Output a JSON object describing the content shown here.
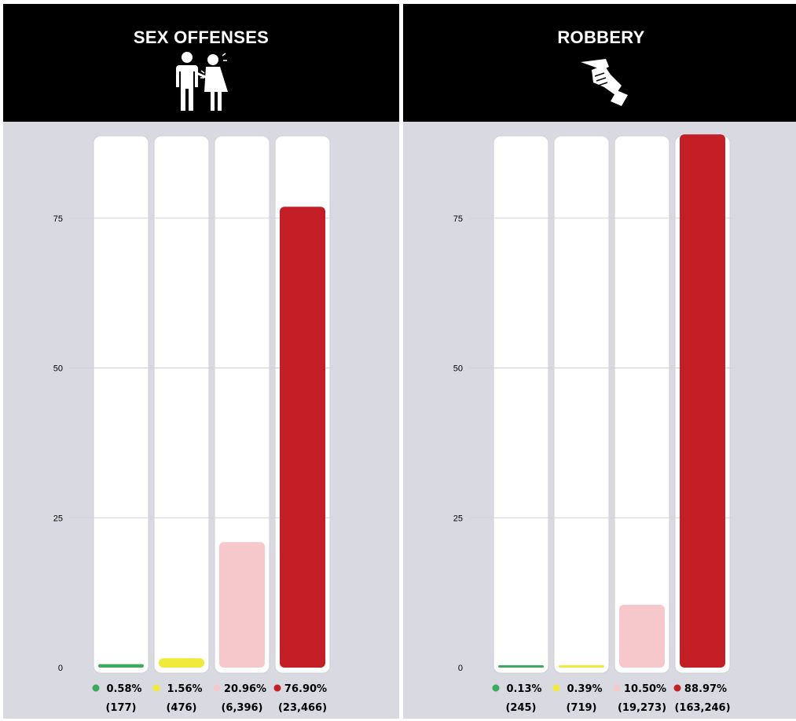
{
  "chart_data": [
    {
      "type": "bar",
      "title": "SEX OFFENSES",
      "icon": "assault-icon",
      "yticks": [
        0,
        25,
        50,
        75
      ],
      "ylim": [
        0,
        90
      ],
      "grid": true,
      "bars": [
        {
          "pct_label": "0.58%",
          "count_label": "(177)",
          "value": 0.58,
          "color": "#3aaa5c"
        },
        {
          "pct_label": "1.56%",
          "count_label": "(476)",
          "value": 1.56,
          "color": "#f2ea3a"
        },
        {
          "pct_label": "20.96%",
          "count_label": "(6,396)",
          "value": 20.96,
          "color": "#f7c8cb"
        },
        {
          "pct_label": "76.90%",
          "count_label": "(23,466)",
          "value": 76.9,
          "color": "#c41e26"
        }
      ]
    },
    {
      "type": "bar",
      "title": "ROBBERY",
      "icon": "gun-icon",
      "yticks": [
        0,
        25,
        50,
        75
      ],
      "ylim": [
        0,
        90
      ],
      "grid": true,
      "bars": [
        {
          "pct_label": "0.13%",
          "count_label": "(245)",
          "value": 0.13,
          "color": "#3aaa5c"
        },
        {
          "pct_label": "0.39%",
          "count_label": "(719)",
          "value": 0.39,
          "color": "#f2ea3a"
        },
        {
          "pct_label": "10.50%",
          "count_label": "(19,273)",
          "value": 10.5,
          "color": "#f7c8cb"
        },
        {
          "pct_label": "88.97%",
          "count_label": "(163,246)",
          "value": 88.97,
          "color": "#c41e26"
        }
      ]
    }
  ]
}
